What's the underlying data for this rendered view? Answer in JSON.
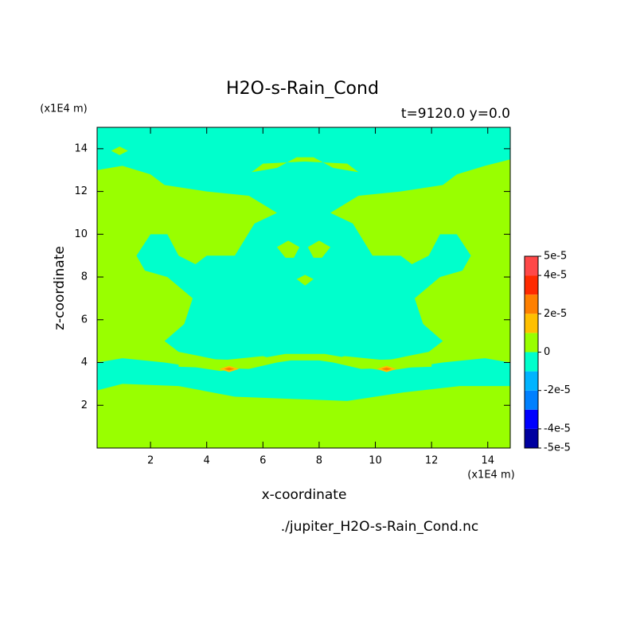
{
  "chart_data": {
    "type": "contour",
    "title": "H2O-s-Rain_Cond",
    "subtitle": "t=9120.0 y=0.0",
    "y_unit": "(x1E4 m)",
    "x_unit": "(x1E4 m)",
    "x_label": "x-coordinate",
    "y_label": "z-coordinate",
    "source": "./jupiter_H2O-s-Rain_Cond.nc",
    "xlim": [
      0.1,
      14.8
    ],
    "ylim": [
      0,
      15
    ],
    "xticks": [
      2,
      4,
      6,
      8,
      10,
      12,
      14
    ],
    "yticks": [
      2,
      4,
      6,
      8,
      10,
      12,
      14
    ],
    "levels": [
      -5e-05,
      -4e-05,
      -3e-05,
      -2e-05,
      -1e-05,
      0,
      1e-05,
      2e-05,
      3e-05,
      4e-05,
      5e-05
    ],
    "colors": [
      "#0000a0",
      "#0000ff",
      "#0080ff",
      "#00b4ff",
      "#00ffcc",
      "#99ff00",
      "#ffc000",
      "#ff8000",
      "#ff2a00",
      "#ff4848"
    ],
    "colorbar_ticks": [
      {
        "value": 5e-05,
        "label": "5e-5"
      },
      {
        "value": 4e-05,
        "label": "4e-5"
      },
      {
        "value": 2e-05,
        "label": "2e-5"
      },
      0,
      {
        "value": -2e-05,
        "label": "-2e-5"
      },
      {
        "value": -4e-05,
        "label": "-4e-5"
      },
      {
        "value": -5e-05,
        "label": "-5e-5"
      }
    ],
    "regions": [
      {
        "range": [
          -1e-05,
          0
        ],
        "polygon": [
          [
            0.1,
            0
          ],
          [
            14.8,
            0
          ],
          [
            14.8,
            15
          ],
          [
            0.1,
            15
          ]
        ]
      },
      {
        "range": [
          0,
          1e-05
        ],
        "polygon": [
          [
            0.1,
            0
          ],
          [
            14.8,
            0
          ],
          [
            14.8,
            2.9
          ],
          [
            13,
            2.9
          ],
          [
            11,
            2.6
          ],
          [
            9,
            2.2
          ],
          [
            7,
            2.3
          ],
          [
            5,
            2.4
          ],
          [
            3,
            2.9
          ],
          [
            1,
            3.0
          ],
          [
            0.1,
            2.7
          ]
        ]
      },
      {
        "range": [
          0,
          1e-05
        ],
        "polygon": [
          [
            0.1,
            4.0
          ],
          [
            1.0,
            4.2
          ],
          [
            2.5,
            4.0
          ],
          [
            3.5,
            3.8
          ],
          [
            4.5,
            3.6
          ],
          [
            5.5,
            3.8
          ],
          [
            6.5,
            4.1
          ],
          [
            6.0,
            4.3
          ],
          [
            4.5,
            4.1
          ],
          [
            3.0,
            4.5
          ],
          [
            2.5,
            5.0
          ],
          [
            3.2,
            5.8
          ],
          [
            3.5,
            7.0
          ],
          [
            2.6,
            8.0
          ],
          [
            1.8,
            8.3
          ],
          [
            1.5,
            9.0
          ],
          [
            2.0,
            10.0
          ],
          [
            2.6,
            10.0
          ],
          [
            3.0,
            9.0
          ],
          [
            3.6,
            8.6
          ],
          [
            4.0,
            9.0
          ],
          [
            5.0,
            9.0
          ],
          [
            5.7,
            10.5
          ],
          [
            6.5,
            11.0
          ],
          [
            5.5,
            11.8
          ],
          [
            4.0,
            12.0
          ],
          [
            2.5,
            12.3
          ],
          [
            2.0,
            12.8
          ],
          [
            1.0,
            13.2
          ],
          [
            0.1,
            13.0
          ]
        ]
      },
      {
        "range": [
          0,
          1e-05
        ],
        "polygon": [
          [
            14.8,
            4.0
          ],
          [
            13.9,
            4.2
          ],
          [
            12.4,
            4.0
          ],
          [
            11.4,
            3.8
          ],
          [
            10.4,
            3.6
          ],
          [
            9.4,
            3.8
          ],
          [
            8.4,
            4.1
          ],
          [
            8.9,
            4.3
          ],
          [
            10.4,
            4.1
          ],
          [
            11.9,
            4.5
          ],
          [
            12.4,
            5.0
          ],
          [
            11.7,
            5.8
          ],
          [
            11.4,
            7.0
          ],
          [
            12.3,
            8.0
          ],
          [
            13.1,
            8.3
          ],
          [
            13.4,
            9.0
          ],
          [
            12.9,
            10.0
          ],
          [
            12.3,
            10.0
          ],
          [
            11.9,
            9.0
          ],
          [
            11.3,
            8.6
          ],
          [
            10.9,
            9.0
          ],
          [
            9.9,
            9.0
          ],
          [
            9.2,
            10.5
          ],
          [
            8.4,
            11.0
          ],
          [
            9.4,
            11.8
          ],
          [
            10.9,
            12.0
          ],
          [
            12.4,
            12.3
          ],
          [
            12.9,
            12.8
          ],
          [
            13.9,
            13.2
          ],
          [
            14.8,
            13.5
          ]
        ]
      },
      {
        "range": [
          0,
          1e-05
        ],
        "polygon": [
          [
            3.0,
            3.8
          ],
          [
            5.5,
            3.7
          ],
          [
            6.5,
            4.0
          ],
          [
            7.0,
            4.1
          ],
          [
            8.0,
            4.1
          ],
          [
            8.5,
            4.0
          ],
          [
            9.5,
            3.7
          ],
          [
            12,
            3.8
          ],
          [
            12,
            4.2
          ],
          [
            9.5,
            4.1
          ],
          [
            8.2,
            4.4
          ],
          [
            6.8,
            4.4
          ],
          [
            5.5,
            4.1
          ],
          [
            3,
            4.2
          ]
        ]
      },
      {
        "range": [
          0,
          1e-05
        ],
        "polygon": [
          [
            5.6,
            12.9
          ],
          [
            6.5,
            13.1
          ],
          [
            7.2,
            13.6
          ],
          [
            7.8,
            13.6
          ],
          [
            8.5,
            13.1
          ],
          [
            9.4,
            12.9
          ],
          [
            9.0,
            13.3
          ],
          [
            7.5,
            13.4
          ],
          [
            6.0,
            13.3
          ]
        ]
      },
      {
        "range": [
          0,
          1e-05
        ],
        "polygon": [
          [
            0.6,
            13.9
          ],
          [
            0.9,
            14.1
          ],
          [
            1.2,
            13.9
          ],
          [
            0.9,
            13.7
          ]
        ]
      },
      {
        "range": [
          0,
          1e-05
        ],
        "polygon": [
          [
            6.5,
            9.4
          ],
          [
            6.9,
            9.7
          ],
          [
            7.3,
            9.4
          ],
          [
            7.1,
            8.9
          ],
          [
            6.8,
            8.9
          ]
        ]
      },
      {
        "range": [
          0,
          1e-05
        ],
        "polygon": [
          [
            7.6,
            9.4
          ],
          [
            8.0,
            9.7
          ],
          [
            8.4,
            9.4
          ],
          [
            8.1,
            8.9
          ],
          [
            7.8,
            8.9
          ]
        ]
      },
      {
        "range": [
          0,
          1e-05
        ],
        "polygon": [
          [
            7.2,
            7.9
          ],
          [
            7.5,
            8.1
          ],
          [
            7.8,
            7.9
          ],
          [
            7.5,
            7.6
          ]
        ]
      },
      {
        "range": [
          1e-05,
          2e-05
        ],
        "polygon": [
          [
            4.45,
            3.7
          ],
          [
            4.8,
            3.85
          ],
          [
            5.15,
            3.7
          ],
          [
            4.8,
            3.55
          ]
        ]
      },
      {
        "range": [
          2e-05,
          3e-05
        ],
        "polygon": [
          [
            4.62,
            3.7
          ],
          [
            4.8,
            3.77
          ],
          [
            4.98,
            3.7
          ],
          [
            4.8,
            3.63
          ]
        ]
      },
      {
        "range": [
          1e-05,
          2e-05
        ],
        "polygon": [
          [
            10.05,
            3.7
          ],
          [
            10.4,
            3.85
          ],
          [
            10.75,
            3.7
          ],
          [
            10.4,
            3.55
          ]
        ]
      },
      {
        "range": [
          2e-05,
          3e-05
        ],
        "polygon": [
          [
            10.22,
            3.7
          ],
          [
            10.4,
            3.77
          ],
          [
            10.58,
            3.7
          ],
          [
            10.4,
            3.63
          ]
        ]
      }
    ]
  }
}
